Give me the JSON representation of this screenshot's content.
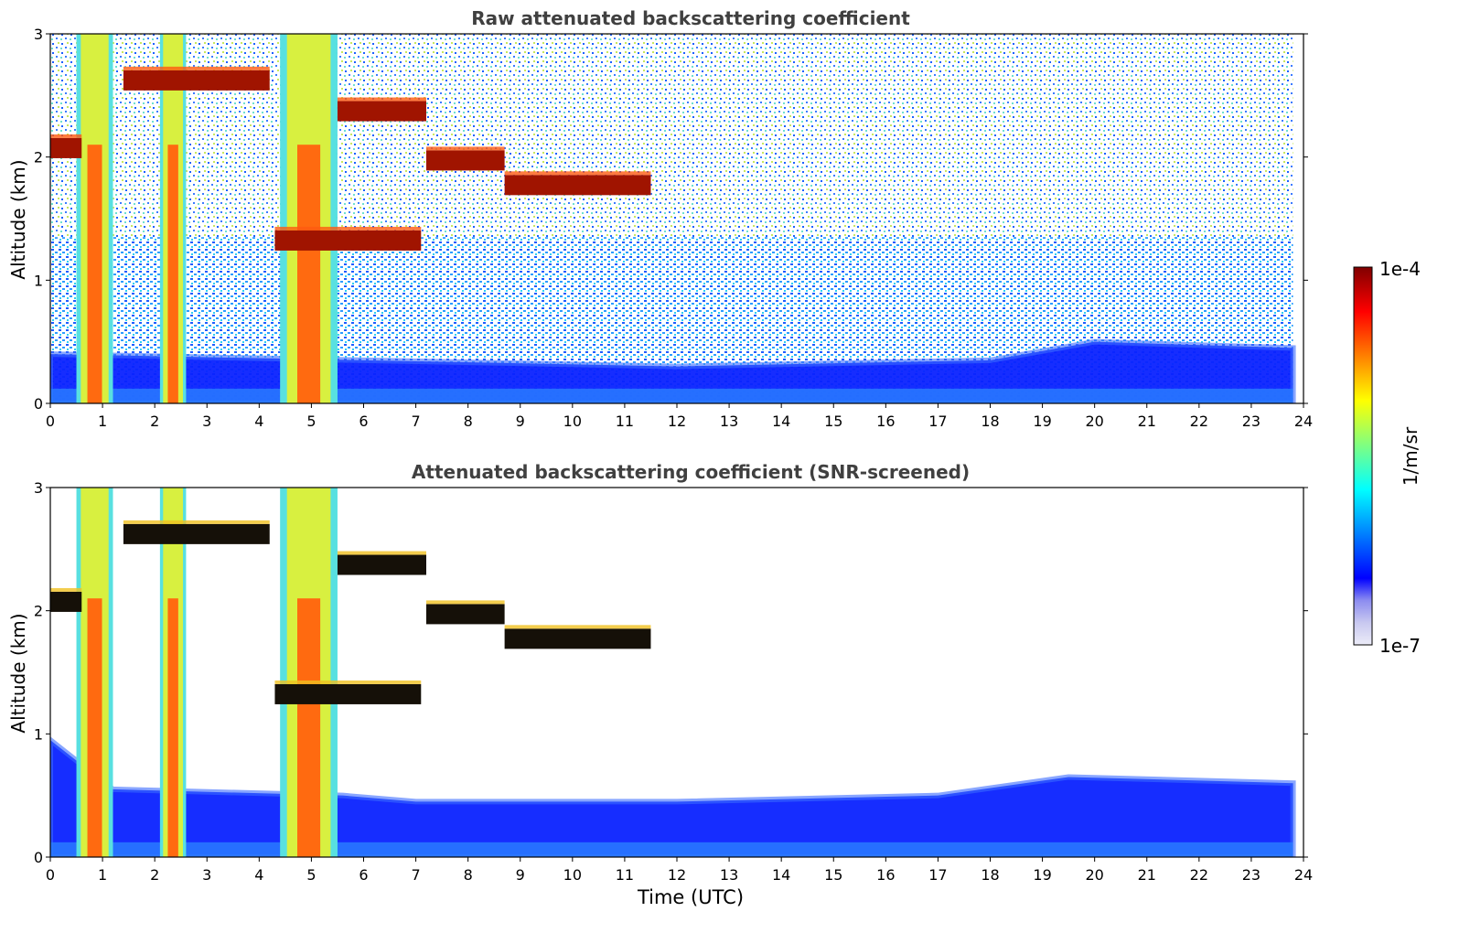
{
  "chart_data": [
    {
      "type": "heatmap",
      "title": "Raw attenuated backscattering coefficient",
      "xlabel": "",
      "ylabel": "Altitude (km)",
      "xlim": [
        0,
        24
      ],
      "ylim": [
        0,
        3
      ],
      "x_ticks": [
        "0",
        "1",
        "2",
        "3",
        "4",
        "5",
        "6",
        "7",
        "8",
        "9",
        "10",
        "11",
        "12",
        "13",
        "14",
        "15",
        "16",
        "17",
        "18",
        "19",
        "20",
        "21",
        "22",
        "23",
        "24"
      ],
      "y_ticks": [
        "0",
        "1",
        "2",
        "3"
      ],
      "data_extent_x": [
        0,
        23.8
      ],
      "cloud_layers": [
        {
          "start": 0.0,
          "end": 0.6,
          "base_km": 2.05
        },
        {
          "start": 1.4,
          "end": 4.2,
          "base_km": 2.6
        },
        {
          "start": 4.3,
          "end": 7.1,
          "base_km": 1.3
        },
        {
          "start": 7.2,
          "end": 8.7,
          "base_km": 1.95
        },
        {
          "start": 8.7,
          "end": 11.5,
          "base_km": 1.75
        },
        {
          "start": 5.5,
          "end": 7.2,
          "base_km": 2.35
        }
      ],
      "precipitation_columns": [
        {
          "start": 0.5,
          "end": 1.2
        },
        {
          "start": 2.1,
          "end": 2.6
        },
        {
          "start": 4.4,
          "end": 5.5
        }
      ],
      "boundary_layer_top_km": [
        {
          "time": 0,
          "km": 0.4
        },
        {
          "time": 6,
          "km": 0.35
        },
        {
          "time": 12,
          "km": 0.3
        },
        {
          "time": 18,
          "km": 0.35
        },
        {
          "time": 20,
          "km": 0.5
        },
        {
          "time": 23.8,
          "km": 0.45
        }
      ]
    },
    {
      "type": "heatmap",
      "title": "Attenuated backscattering coefficient (SNR-screened)",
      "xlabel": "Time (UTC)",
      "ylabel": "Altitude (km)",
      "xlim": [
        0,
        24
      ],
      "ylim": [
        0,
        3
      ],
      "x_ticks": [
        "0",
        "1",
        "2",
        "3",
        "4",
        "5",
        "6",
        "7",
        "8",
        "9",
        "10",
        "11",
        "12",
        "13",
        "14",
        "15",
        "16",
        "17",
        "18",
        "19",
        "20",
        "21",
        "22",
        "23",
        "24"
      ],
      "y_ticks": [
        "0",
        "1",
        "2",
        "3"
      ],
      "data_extent_x": [
        0,
        23.8
      ],
      "boundary_layer_top_km": [
        {
          "time": 0,
          "km": 0.95
        },
        {
          "time": 1.2,
          "km": 0.55
        },
        {
          "time": 5.6,
          "km": 0.5
        },
        {
          "time": 7,
          "km": 0.45
        },
        {
          "time": 12,
          "km": 0.45
        },
        {
          "time": 17,
          "km": 0.5
        },
        {
          "time": 19.5,
          "km": 0.65
        },
        {
          "time": 23.8,
          "km": 0.6
        }
      ]
    }
  ],
  "colorbar": {
    "max_label": "1e-4",
    "min_label": "1e-7",
    "unit": "1/m/sr",
    "colors": [
      "#ececf8",
      "#c8c8f0",
      "#8c8cf0",
      "#0000ff",
      "#0040ff",
      "#0080ff",
      "#00c0ff",
      "#00ffff",
      "#40ffc0",
      "#80ff80",
      "#c0ff40",
      "#ffff00",
      "#ffc000",
      "#ff8000",
      "#ff4000",
      "#ff0000",
      "#c00000",
      "#800000"
    ]
  }
}
